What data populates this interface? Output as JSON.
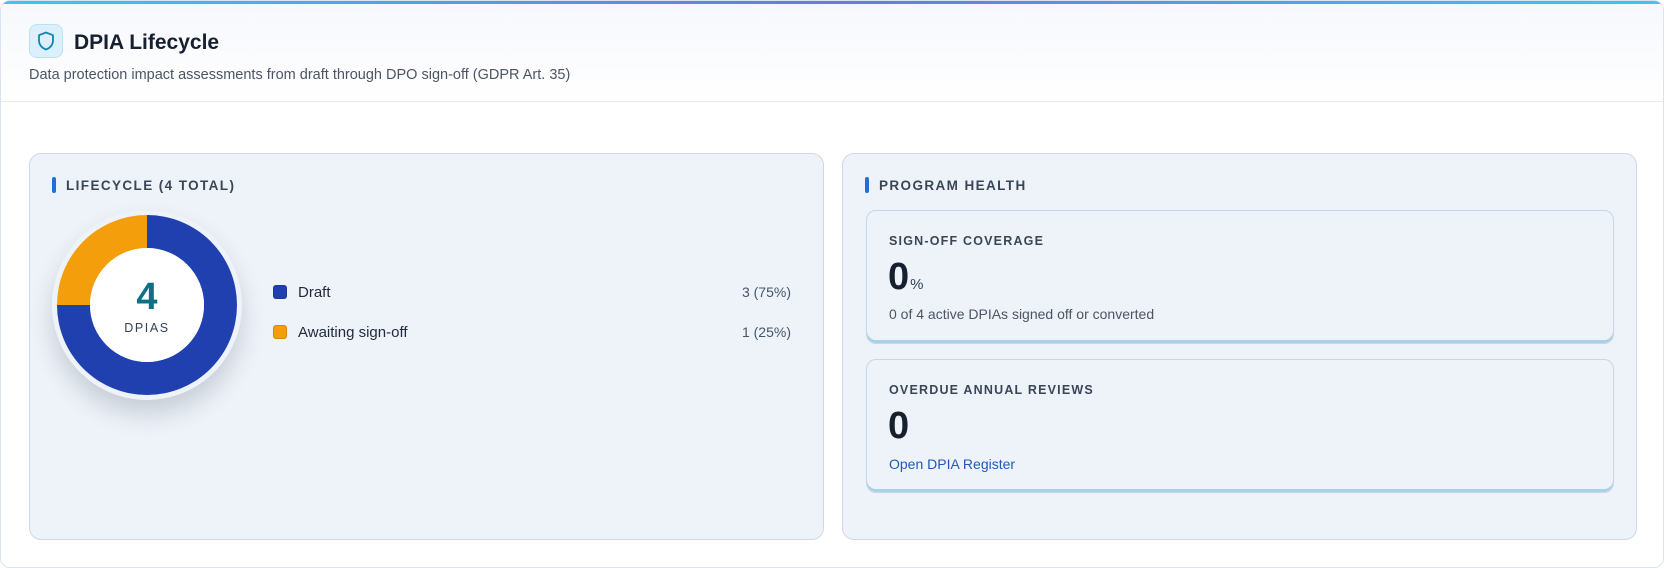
{
  "header": {
    "icon": "shield-icon",
    "title": "DPIA Lifecycle",
    "subtitle": "Data protection impact assessments from draft through DPO sign-off (GDPR Art. 35)"
  },
  "lifecycle": {
    "label": "LIFECYCLE (4 TOTAL)",
    "total": "4",
    "total_unit": "DPIAS",
    "chart_data": {
      "type": "pie",
      "categories": [
        "Draft",
        "Awaiting sign-off"
      ],
      "values": [
        3,
        1
      ],
      "colors": [
        "#2140b0",
        "#f59e0b"
      ]
    },
    "legend": [
      {
        "label": "Draft",
        "value": "3 (75%)",
        "color": "#2140b0"
      },
      {
        "label": "Awaiting sign-off",
        "value": "1 (25%)",
        "color": "#f59e0b"
      }
    ]
  },
  "health": {
    "label": "PROGRAM HEALTH",
    "signoff": {
      "title": "SIGN-OFF COVERAGE",
      "value": "0",
      "suffix": "%",
      "note": "0 of 4 active DPIAs signed off or converted"
    },
    "overdue": {
      "title": "OVERDUE ANNUAL REVIEWS",
      "value": "0",
      "link": "Open DPIA Register"
    }
  },
  "colors": {
    "accent": "#1e6fd9",
    "draft": "#2140b0",
    "awaiting": "#f59e0b",
    "total_number": "#0e6f86"
  }
}
